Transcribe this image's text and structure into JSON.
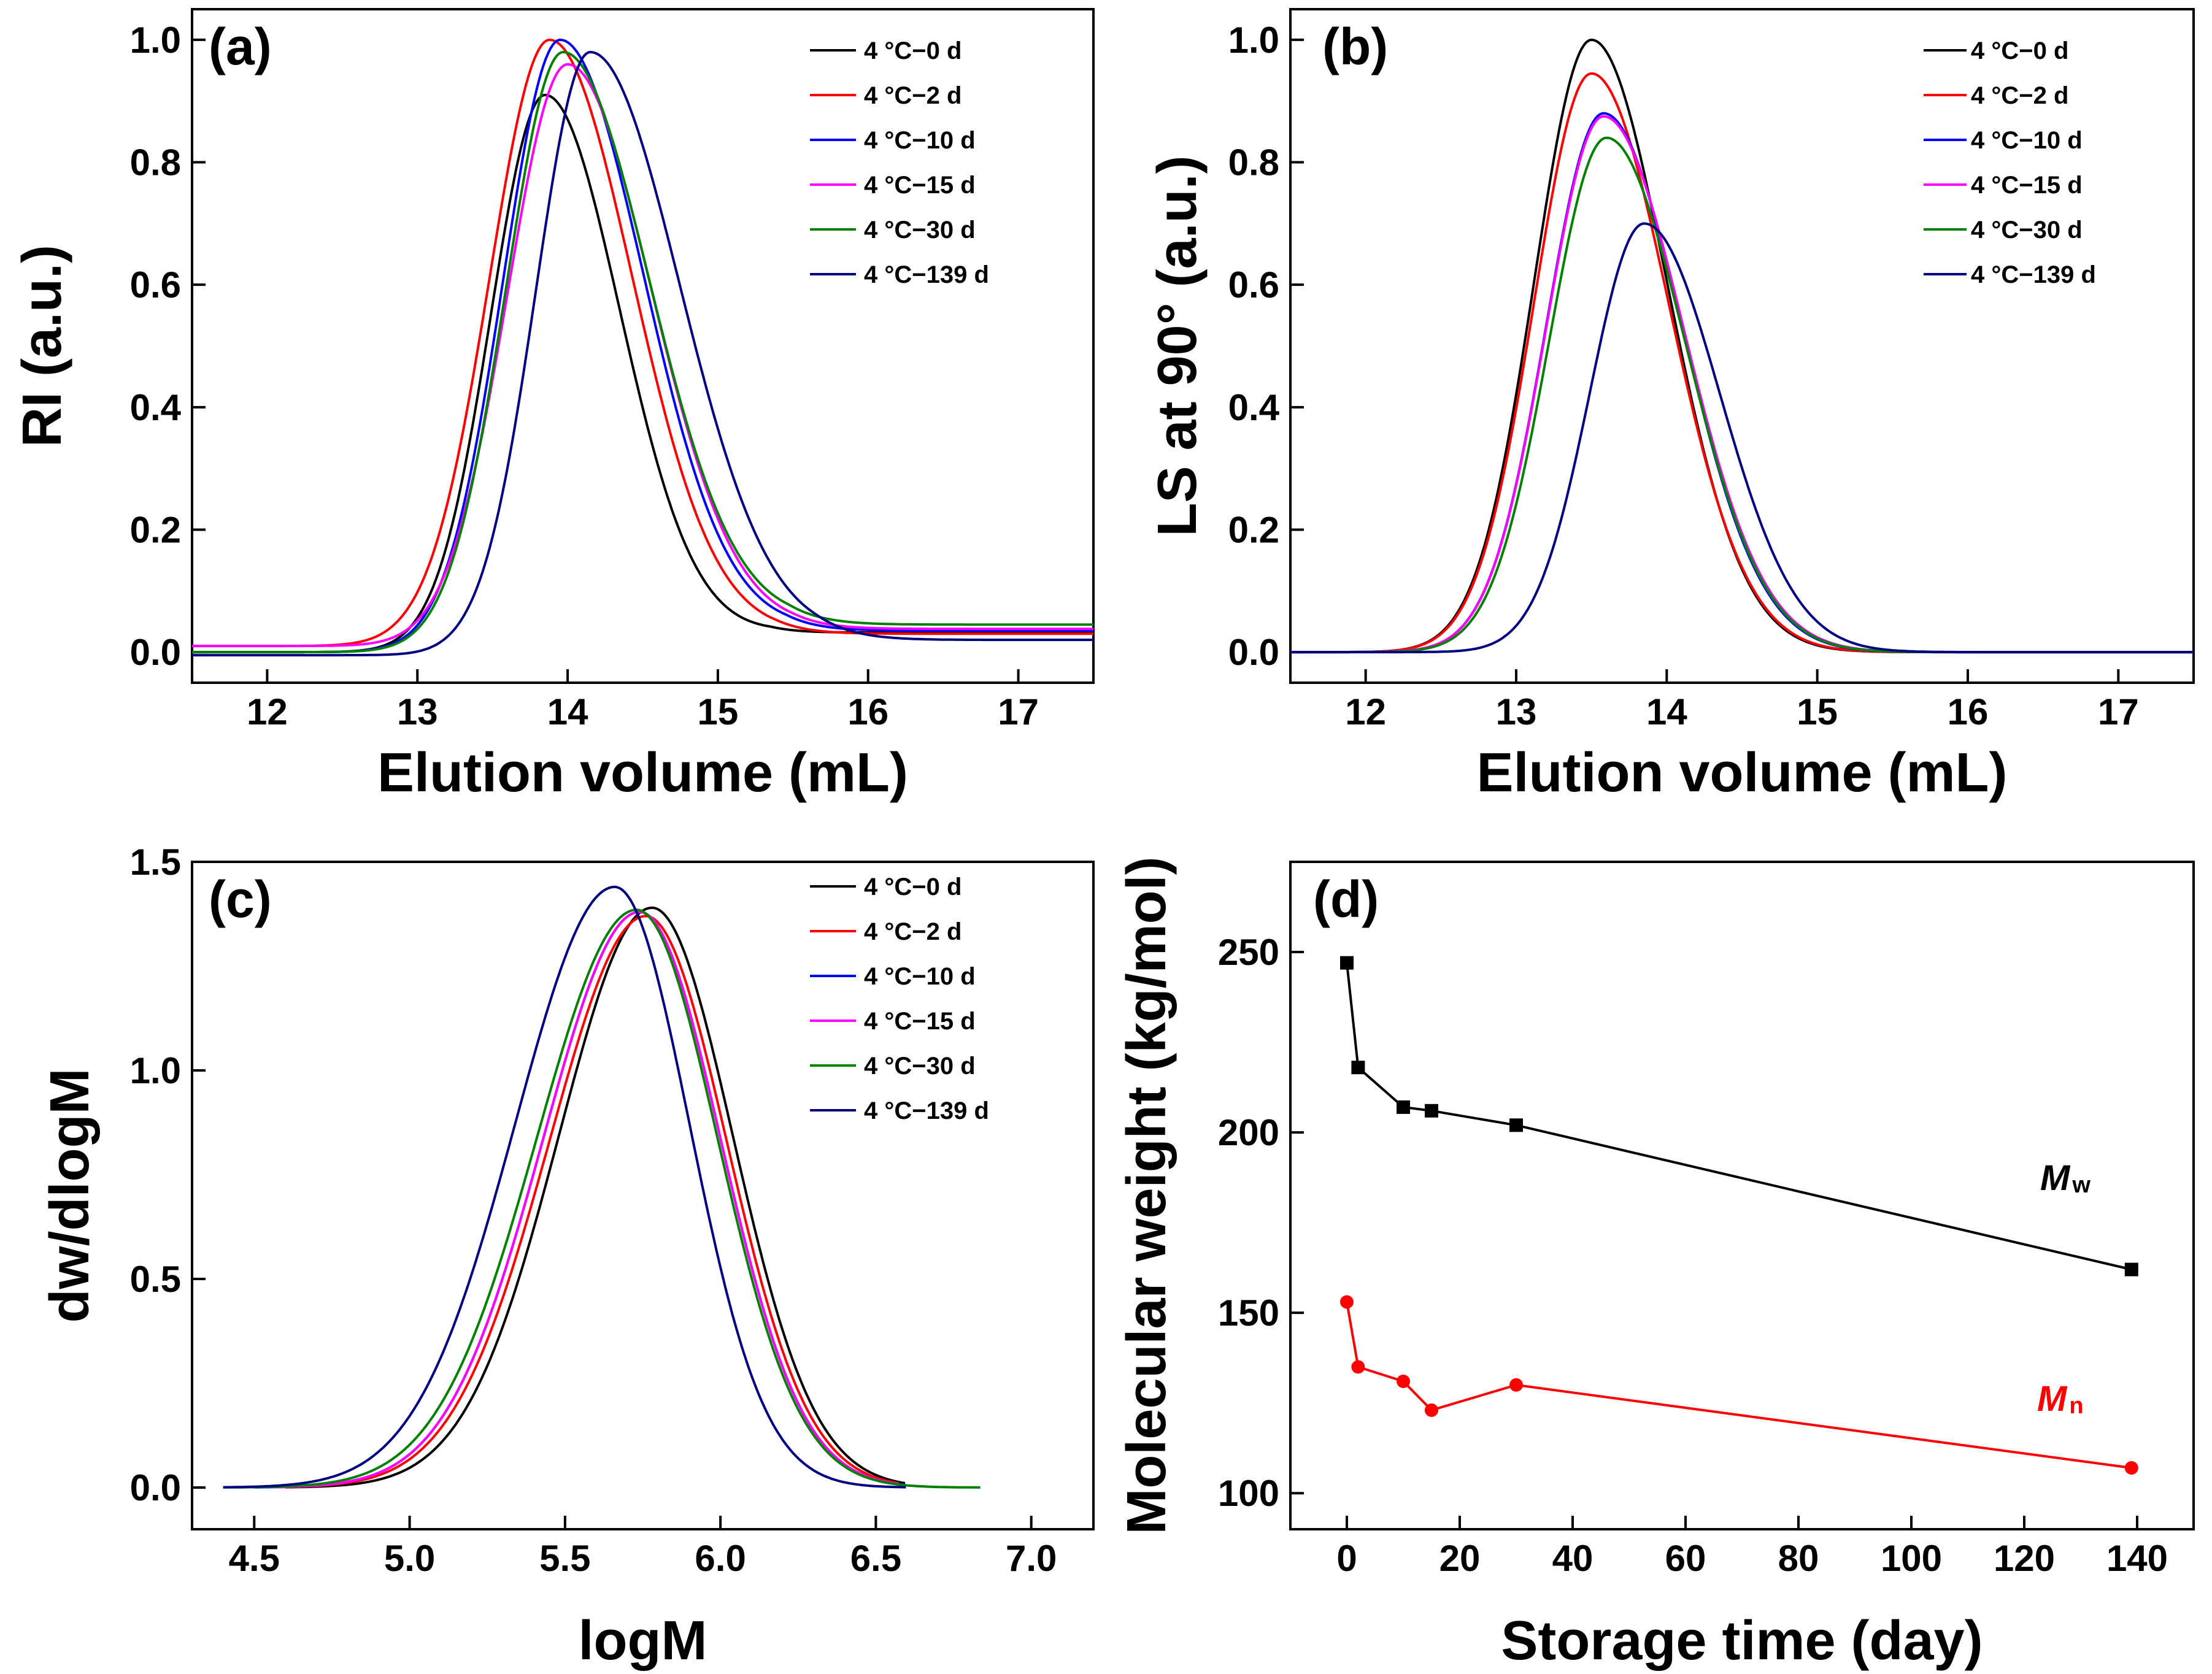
{
  "colors": {
    "black": "#000000",
    "red": "#ff0000",
    "blue": "#0000ff",
    "magenta": "#ff00ff",
    "green": "#008000",
    "navy": "#000080"
  },
  "chart_data": [
    {
      "id": "a",
      "panel": "(a)",
      "type": "line",
      "xlabel": "Elution volume (mL)",
      "ylabel": "RI (a.u.)",
      "xlim": [
        11.5,
        17.5
      ],
      "ylim": [
        -0.05,
        1.05
      ],
      "xticks": [
        12,
        13,
        14,
        15,
        16,
        17
      ],
      "yticks": [
        0.0,
        0.2,
        0.4,
        0.6,
        0.8,
        1.0
      ],
      "xtick_labels": [
        "12",
        "13",
        "14",
        "15",
        "16",
        "17"
      ],
      "ytick_labels": [
        "0.0",
        "0.2",
        "0.4",
        "0.6",
        "0.8",
        "1.0"
      ],
      "legend": [
        "4 °C−0 d",
        "4 °C−2 d",
        "4 °C−10 d",
        "4 °C−15 d",
        "4 °C−30 d",
        "4 °C−139 d"
      ],
      "series": [
        {
          "name": "4 °C−0 d",
          "color": "#000000",
          "peak": 13.85,
          "height": 0.91,
          "sl": 0.36,
          "sr": 0.5,
          "b0": 0.0,
          "b1": 0.032
        },
        {
          "name": "4 °C−2 d",
          "color": "#ff0000",
          "peak": 13.88,
          "height": 1.0,
          "sl": 0.4,
          "sr": 0.55,
          "b0": 0.01,
          "b1": 0.03
        },
        {
          "name": "4 °C−10 d",
          "color": "#0000ff",
          "peak": 13.95,
          "height": 1.0,
          "sl": 0.38,
          "sr": 0.56,
          "b0": 0.0,
          "b1": 0.035
        },
        {
          "name": "4 °C−15 d",
          "color": "#ff00ff",
          "peak": 14.0,
          "height": 0.96,
          "sl": 0.4,
          "sr": 0.56,
          "b0": 0.01,
          "b1": 0.038
        },
        {
          "name": "4 °C−30 d",
          "color": "#008000",
          "peak": 13.97,
          "height": 0.98,
          "sl": 0.38,
          "sr": 0.58,
          "b0": 0.0,
          "b1": 0.045
        },
        {
          "name": "4 °C−139 d",
          "color": "#000080",
          "peak": 14.15,
          "height": 0.98,
          "sl": 0.36,
          "sr": 0.6,
          "b0": -0.005,
          "b1": 0.02
        }
      ]
    },
    {
      "id": "b",
      "panel": "(b)",
      "type": "line",
      "xlabel": "Elution volume (mL)",
      "ylabel": "LS at 90° (a.u.)",
      "xlim": [
        11.5,
        17.5
      ],
      "ylim": [
        -0.05,
        1.05
      ],
      "xticks": [
        12,
        13,
        14,
        15,
        16,
        17
      ],
      "yticks": [
        0.0,
        0.2,
        0.4,
        0.6,
        0.8,
        1.0
      ],
      "xtick_labels": [
        "12",
        "13",
        "14",
        "15",
        "16",
        "17"
      ],
      "ytick_labels": [
        "0.0",
        "0.2",
        "0.4",
        "0.6",
        "0.8",
        "1.0"
      ],
      "legend": [
        "4 °C−0 d",
        "4 °C−2 d",
        "4 °C−10 d",
        "4 °C−15 d",
        "4 °C−30 d",
        "4 °C−139 d"
      ],
      "series": [
        {
          "name": "4 °C−0 d",
          "color": "#000000",
          "peak": 13.5,
          "height": 1.0,
          "sl": 0.38,
          "sr": 0.5,
          "b0": 0,
          "b1": 0
        },
        {
          "name": "4 °C−2 d",
          "color": "#ff0000",
          "peak": 13.5,
          "height": 0.945,
          "sl": 0.38,
          "sr": 0.51,
          "b0": 0,
          "b1": 0
        },
        {
          "name": "4 °C−10 d",
          "color": "#0000ff",
          "peak": 13.58,
          "height": 0.88,
          "sl": 0.38,
          "sr": 0.52,
          "b0": 0,
          "b1": 0
        },
        {
          "name": "4 °C−15 d",
          "color": "#ff00ff",
          "peak": 13.58,
          "height": 0.875,
          "sl": 0.38,
          "sr": 0.53,
          "b0": 0,
          "b1": 0
        },
        {
          "name": "4 °C−30 d",
          "color": "#008000",
          "peak": 13.6,
          "height": 0.84,
          "sl": 0.38,
          "sr": 0.52,
          "b0": 0,
          "b1": 0
        },
        {
          "name": "4 °C−139 d",
          "color": "#000080",
          "peak": 13.85,
          "height": 0.7,
          "sl": 0.36,
          "sr": 0.5,
          "b0": 0,
          "b1": 0
        }
      ]
    },
    {
      "id": "c",
      "panel": "(c)",
      "type": "line",
      "xlabel": "logM",
      "ylabel": "dw/dlogM",
      "xlim": [
        4.3,
        7.2
      ],
      "ylim": [
        -0.1,
        1.5
      ],
      "xticks": [
        4.5,
        5.0,
        5.5,
        6.0,
        6.5,
        7.0
      ],
      "yticks": [
        0.0,
        0.5,
        1.0,
        1.5
      ],
      "xtick_labels": [
        "4.5",
        "5.0",
        "5.5",
        "6.0",
        "6.5",
        "7.0"
      ],
      "ytick_labels": [
        "0.0",
        "0.5",
        "1.0",
        "1.5"
      ],
      "legend": [
        "4 °C−0 d",
        "4 °C−2 d",
        "4 °C−10 d",
        "4 °C−15 d",
        "4 °C−30 d",
        "4 °C−139 d"
      ],
      "series": [
        {
          "name": "4 °C−0 d",
          "color": "#000000",
          "peak": 5.78,
          "height": 1.39,
          "sl": 0.3,
          "sr": 0.26,
          "xmin": 4.6,
          "xmax": 6.6
        },
        {
          "name": "4 °C−2 d",
          "color": "#ff0000",
          "peak": 5.76,
          "height": 1.37,
          "sl": 0.31,
          "sr": 0.26,
          "xmin": 4.58,
          "xmax": 6.58
        },
        {
          "name": "4 °C−10 d",
          "color": "#0000ff",
          "peak": 5.74,
          "height": 1.38,
          "sl": 0.31,
          "sr": 0.26,
          "xmin": 4.5,
          "xmax": 6.6
        },
        {
          "name": "4 °C−15 d",
          "color": "#ff00ff",
          "peak": 5.74,
          "height": 1.38,
          "sl": 0.31,
          "sr": 0.26,
          "xmin": 4.58,
          "xmax": 6.58
        },
        {
          "name": "4 °C−30 d",
          "color": "#008000",
          "peak": 5.73,
          "height": 1.385,
          "sl": 0.32,
          "sr": 0.26,
          "xmin": 4.4,
          "xmax": 6.84
        },
        {
          "name": "4 °C−139 d",
          "color": "#000080",
          "peak": 5.66,
          "height": 1.44,
          "sl": 0.32,
          "sr": 0.24,
          "xmin": 4.4,
          "xmax": 6.6
        }
      ]
    },
    {
      "id": "d",
      "panel": "(d)",
      "type": "scatter-line",
      "xlabel": "Storage time (day)",
      "ylabel": "Molecular  weight (kg/mol)",
      "xlim": [
        -10,
        150
      ],
      "ylim": [
        90,
        275
      ],
      "xticks": [
        0,
        20,
        40,
        60,
        80,
        100,
        120,
        140
      ],
      "yticks": [
        100,
        150,
        200,
        250
      ],
      "xtick_labels": [
        "0",
        "20",
        "40",
        "60",
        "80",
        "100",
        "120",
        "140"
      ],
      "ytick_labels": [
        "100",
        "150",
        "200",
        "250"
      ],
      "series": [
        {
          "name": "Mw",
          "label_main": "M",
          "label_sub": "w",
          "color": "#000000",
          "marker": "square",
          "x": [
            0,
            2,
            10,
            15,
            30,
            139
          ],
          "y": [
            247,
            218,
            207,
            206,
            202,
            162
          ]
        },
        {
          "name": "Mn",
          "label_main": "M",
          "label_sub": "n",
          "color": "#ff0000",
          "marker": "circle",
          "x": [
            0,
            2,
            10,
            15,
            30,
            139
          ],
          "y": [
            153,
            135,
            131,
            123,
            130,
            107
          ]
        }
      ]
    }
  ]
}
